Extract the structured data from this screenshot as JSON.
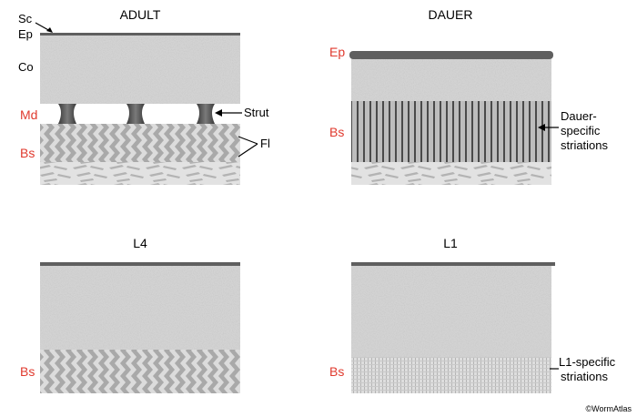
{
  "colors": {
    "label_red": "#e03a2e",
    "epicuticle": "#5f5f5f",
    "cortical": "#d3d3d3",
    "fiber": "#a8a8a8",
    "strut": "#4f4f4f"
  },
  "panels": {
    "adult": {
      "title": "ADULT",
      "labels": {
        "sc": "Sc",
        "ep": "Ep",
        "co": "Co",
        "md": "Md",
        "bs": "Bs",
        "strut": "Strut",
        "fl": "Fl"
      }
    },
    "dauer": {
      "title": "DAUER",
      "labels": {
        "ep": "Ep",
        "bs": "Bs",
        "striations_1": "Dauer-",
        "striations_2": "specific",
        "striations_3": "striations"
      }
    },
    "l4": {
      "title": "L4",
      "labels": {
        "bs": "Bs"
      }
    },
    "l1": {
      "title": "L1",
      "labels": {
        "bs": "Bs",
        "striations_1": "L1-specific",
        "striations_2": "striations"
      }
    }
  },
  "credit": "©WormAtlas"
}
